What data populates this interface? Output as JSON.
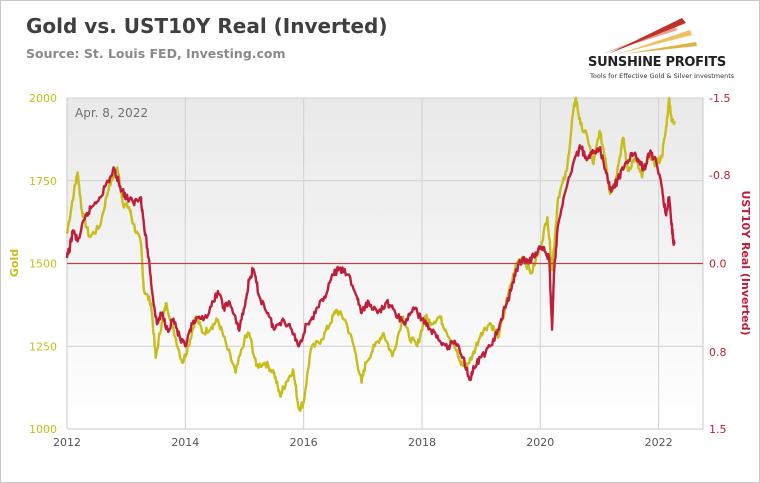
{
  "header": {
    "title": "Gold vs. UST10Y Real (Inverted)",
    "subtitle": "Source: St. Louis FED, Investing.com"
  },
  "logo": {
    "name": "SUNSHINE PROFITS",
    "tagline": "Tools for Effective Gold & Silver Investments"
  },
  "colors": {
    "gold": "#c8bd1a",
    "real_yield": "#bf1e3a",
    "zero_line": "#b54545",
    "background": "#ffffff"
  },
  "chart_data": {
    "type": "line",
    "annotation": "Apr. 8, 2022",
    "x_ticks": [
      "2012",
      "2014",
      "2016",
      "2018",
      "2020",
      "2022"
    ],
    "xlim": [
      2012,
      2022.75
    ],
    "y_left": {
      "label": "Gold",
      "ticks": [
        "1000",
        "1250",
        "1500",
        "1750",
        "2000"
      ],
      "lim": [
        1000,
        2000
      ]
    },
    "y_right": {
      "label": "UST10Y Real (Inverted)",
      "ticks": [
        "-1.5",
        "-0.8",
        "0.0",
        "0.8",
        "1.5"
      ],
      "lim": [
        -1.5,
        1.5
      ],
      "inverted": true
    },
    "grid": true,
    "reference_line": {
      "axis": "right",
      "value": 0.0
    },
    "series": [
      {
        "axis": "left",
        "points": [
          [
            2012.0,
            1590
          ],
          [
            2012.12,
            1720
          ],
          [
            2012.18,
            1775
          ],
          [
            2012.25,
            1660
          ],
          [
            2012.38,
            1580
          ],
          [
            2012.55,
            1610
          ],
          [
            2012.72,
            1740
          ],
          [
            2012.85,
            1790
          ],
          [
            2012.95,
            1680
          ],
          [
            2013.05,
            1670
          ],
          [
            2013.12,
            1620
          ],
          [
            2013.25,
            1560
          ],
          [
            2013.3,
            1420
          ],
          [
            2013.42,
            1380
          ],
          [
            2013.5,
            1215
          ],
          [
            2013.6,
            1320
          ],
          [
            2013.68,
            1380
          ],
          [
            2013.8,
            1300
          ],
          [
            2013.95,
            1200
          ],
          [
            2014.05,
            1250
          ],
          [
            2014.18,
            1340
          ],
          [
            2014.3,
            1290
          ],
          [
            2014.45,
            1310
          ],
          [
            2014.55,
            1330
          ],
          [
            2014.7,
            1250
          ],
          [
            2014.85,
            1170
          ],
          [
            2015.0,
            1270
          ],
          [
            2015.08,
            1290
          ],
          [
            2015.2,
            1190
          ],
          [
            2015.35,
            1200
          ],
          [
            2015.5,
            1170
          ],
          [
            2015.6,
            1100
          ],
          [
            2015.7,
            1140
          ],
          [
            2015.82,
            1180
          ],
          [
            2015.92,
            1060
          ],
          [
            2016.0,
            1080
          ],
          [
            2016.12,
            1240
          ],
          [
            2016.3,
            1270
          ],
          [
            2016.45,
            1320
          ],
          [
            2016.55,
            1360
          ],
          [
            2016.7,
            1330
          ],
          [
            2016.85,
            1250
          ],
          [
            2016.98,
            1140
          ],
          [
            2017.05,
            1200
          ],
          [
            2017.2,
            1250
          ],
          [
            2017.35,
            1290
          ],
          [
            2017.5,
            1220
          ],
          [
            2017.68,
            1340
          ],
          [
            2017.78,
            1280
          ],
          [
            2017.92,
            1250
          ],
          [
            2018.05,
            1340
          ],
          [
            2018.15,
            1320
          ],
          [
            2018.3,
            1340
          ],
          [
            2018.4,
            1300
          ],
          [
            2018.55,
            1250
          ],
          [
            2018.65,
            1200
          ],
          [
            2018.75,
            1190
          ],
          [
            2018.85,
            1220
          ],
          [
            2019.0,
            1290
          ],
          [
            2019.15,
            1320
          ],
          [
            2019.3,
            1280
          ],
          [
            2019.45,
            1400
          ],
          [
            2019.6,
            1500
          ],
          [
            2019.7,
            1520
          ],
          [
            2019.85,
            1470
          ],
          [
            2020.0,
            1550
          ],
          [
            2020.12,
            1640
          ],
          [
            2020.2,
            1480
          ],
          [
            2020.3,
            1700
          ],
          [
            2020.45,
            1780
          ],
          [
            2020.55,
            1950
          ],
          [
            2020.6,
            2000
          ],
          [
            2020.68,
            1920
          ],
          [
            2020.8,
            1880
          ],
          [
            2020.9,
            1800
          ],
          [
            2021.0,
            1900
          ],
          [
            2021.1,
            1820
          ],
          [
            2021.18,
            1710
          ],
          [
            2021.28,
            1760
          ],
          [
            2021.4,
            1880
          ],
          [
            2021.48,
            1780
          ],
          [
            2021.6,
            1820
          ],
          [
            2021.72,
            1760
          ],
          [
            2021.85,
            1830
          ],
          [
            2021.95,
            1800
          ],
          [
            2022.05,
            1820
          ],
          [
            2022.12,
            1900
          ],
          [
            2022.18,
            2000
          ],
          [
            2022.22,
            1930
          ],
          [
            2022.27,
            1930
          ]
        ]
      },
      {
        "axis": "right",
        "points": [
          [
            2012.0,
            -0.05
          ],
          [
            2012.05,
            -0.15
          ],
          [
            2012.1,
            -0.3
          ],
          [
            2012.18,
            -0.2
          ],
          [
            2012.3,
            -0.4
          ],
          [
            2012.4,
            -0.5
          ],
          [
            2012.55,
            -0.6
          ],
          [
            2012.7,
            -0.75
          ],
          [
            2012.8,
            -0.85
          ],
          [
            2012.9,
            -0.7
          ],
          [
            2013.0,
            -0.6
          ],
          [
            2013.12,
            -0.55
          ],
          [
            2013.25,
            -0.6
          ],
          [
            2013.3,
            -0.35
          ],
          [
            2013.38,
            -0.05
          ],
          [
            2013.45,
            0.3
          ],
          [
            2013.52,
            0.55
          ],
          [
            2013.6,
            0.45
          ],
          [
            2013.7,
            0.6
          ],
          [
            2013.8,
            0.5
          ],
          [
            2013.92,
            0.7
          ],
          [
            2014.0,
            0.75
          ],
          [
            2014.12,
            0.55
          ],
          [
            2014.25,
            0.5
          ],
          [
            2014.4,
            0.45
          ],
          [
            2014.55,
            0.25
          ],
          [
            2014.65,
            0.4
          ],
          [
            2014.75,
            0.35
          ],
          [
            2014.9,
            0.6
          ],
          [
            2015.0,
            0.4
          ],
          [
            2015.08,
            0.15
          ],
          [
            2015.15,
            0.05
          ],
          [
            2015.25,
            0.3
          ],
          [
            2015.4,
            0.45
          ],
          [
            2015.5,
            0.6
          ],
          [
            2015.65,
            0.5
          ],
          [
            2015.8,
            0.6
          ],
          [
            2015.92,
            0.75
          ],
          [
            2016.05,
            0.55
          ],
          [
            2016.2,
            0.45
          ],
          [
            2016.35,
            0.3
          ],
          [
            2016.5,
            0.1
          ],
          [
            2016.6,
            0.05
          ],
          [
            2016.75,
            0.1
          ],
          [
            2016.9,
            0.3
          ],
          [
            2016.98,
            0.45
          ],
          [
            2017.1,
            0.35
          ],
          [
            2017.25,
            0.45
          ],
          [
            2017.4,
            0.35
          ],
          [
            2017.55,
            0.45
          ],
          [
            2017.7,
            0.55
          ],
          [
            2017.85,
            0.4
          ],
          [
            2018.0,
            0.5
          ],
          [
            2018.15,
            0.6
          ],
          [
            2018.3,
            0.7
          ],
          [
            2018.45,
            0.75
          ],
          [
            2018.55,
            0.7
          ],
          [
            2018.7,
            0.85
          ],
          [
            2018.8,
            1.05
          ],
          [
            2018.88,
            0.95
          ],
          [
            2019.0,
            0.85
          ],
          [
            2019.15,
            0.75
          ],
          [
            2019.3,
            0.6
          ],
          [
            2019.4,
            0.4
          ],
          [
            2019.5,
            0.25
          ],
          [
            2019.6,
            0.05
          ],
          [
            2019.7,
            -0.05
          ],
          [
            2019.8,
            0.0
          ],
          [
            2019.92,
            -0.1
          ],
          [
            2020.05,
            -0.15
          ],
          [
            2020.15,
            -0.05
          ],
          [
            2020.2,
            0.6
          ],
          [
            2020.23,
            0.1
          ],
          [
            2020.3,
            -0.35
          ],
          [
            2020.45,
            -0.7
          ],
          [
            2020.58,
            -0.95
          ],
          [
            2020.68,
            -1.05
          ],
          [
            2020.8,
            -0.95
          ],
          [
            2020.9,
            -1.0
          ],
          [
            2021.0,
            -1.05
          ],
          [
            2021.1,
            -0.85
          ],
          [
            2021.2,
            -0.65
          ],
          [
            2021.3,
            -0.75
          ],
          [
            2021.4,
            -0.85
          ],
          [
            2021.55,
            -1.0
          ],
          [
            2021.65,
            -0.95
          ],
          [
            2021.75,
            -0.85
          ],
          [
            2021.85,
            -1.0
          ],
          [
            2021.95,
            -0.95
          ],
          [
            2022.05,
            -0.7
          ],
          [
            2022.12,
            -0.45
          ],
          [
            2022.18,
            -0.6
          ],
          [
            2022.22,
            -0.35
          ],
          [
            2022.25,
            -0.2
          ],
          [
            2022.27,
            -0.2
          ]
        ]
      }
    ]
  }
}
